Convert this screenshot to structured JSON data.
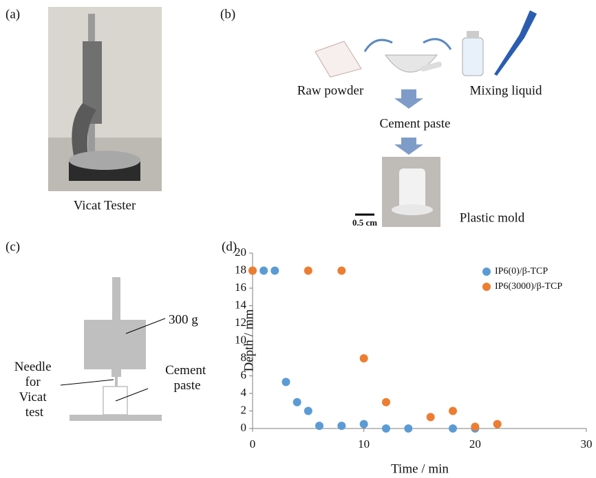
{
  "panels": {
    "a": {
      "label": "(a)",
      "caption": "Vicat Tester"
    },
    "b": {
      "label": "(b)",
      "raw_powder": "Raw powder",
      "mixing_liquid": "Mixing liquid",
      "cement_paste": "Cement paste",
      "scale_bar": "0.5 cm",
      "plastic_mold": "Plastic mold"
    },
    "c": {
      "label": "(c)",
      "weight": "300 g",
      "needle": [
        "Needle",
        "for",
        "Vicat",
        "test"
      ],
      "paste": [
        "Cement",
        "paste"
      ]
    },
    "d": {
      "label": "(d)"
    }
  },
  "chart_data": {
    "type": "scatter",
    "x_label": "Time / min",
    "y_label": "Depth / mm",
    "xlim": [
      0,
      30
    ],
    "xticks": [
      0,
      10,
      20,
      30
    ],
    "ylim": [
      0,
      20
    ],
    "yticks": [
      0,
      2,
      4,
      6,
      8,
      10,
      12,
      14,
      16,
      18,
      20
    ],
    "grid": false,
    "legend": "upper right",
    "series": [
      {
        "name": "IP6(0)/β-TCP",
        "color": "#5b9bd5",
        "x": [
          0,
          1,
          2,
          3,
          4,
          5,
          6,
          8,
          10,
          12,
          14,
          18,
          20
        ],
        "values": [
          18,
          18,
          18,
          5.3,
          3,
          2,
          0.3,
          0.3,
          0.5,
          0,
          0,
          0,
          0
        ]
      },
      {
        "name": "IP6(3000)/β-TCP",
        "color": "#ed7d31",
        "x": [
          0,
          5,
          8,
          10,
          12,
          16,
          18,
          20,
          22
        ],
        "values": [
          18,
          18,
          18,
          8,
          3,
          1.3,
          2,
          0.2,
          0.5
        ]
      }
    ]
  }
}
